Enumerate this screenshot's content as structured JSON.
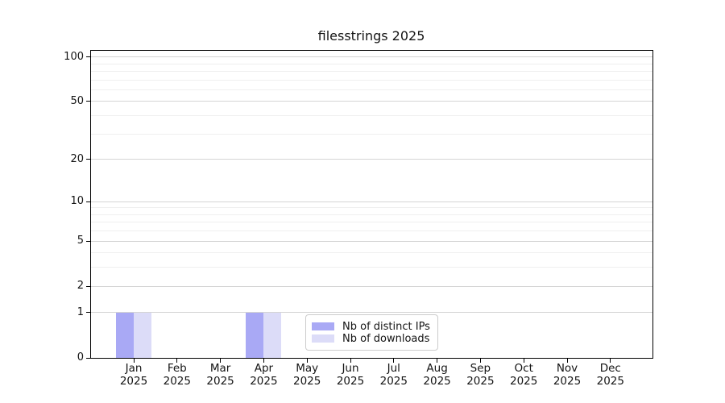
{
  "chart_data": {
    "type": "bar",
    "title": "filesstrings 2025",
    "categories": [
      "Jan 2025",
      "Feb 2025",
      "Mar 2025",
      "Apr 2025",
      "May 2025",
      "Jun 2025",
      "Jul 2025",
      "Aug 2025",
      "Sep 2025",
      "Oct 2025",
      "Nov 2025",
      "Dec 2025"
    ],
    "series": [
      {
        "name": "Nb of distinct IPs",
        "color": "#a9a9f5",
        "values": [
          1,
          0,
          0,
          1,
          0,
          0,
          0,
          0,
          0,
          0,
          0,
          0
        ]
      },
      {
        "name": "Nb of downloads",
        "color": "#dcdcf8",
        "values": [
          1,
          0,
          0,
          1,
          0,
          0,
          0,
          0,
          0,
          0,
          0,
          0
        ]
      }
    ],
    "yscale": "log1p",
    "ylim": [
      0,
      110
    ],
    "yticks": [
      0,
      1,
      2,
      5,
      10,
      20,
      50,
      100
    ],
    "yticks_minor": [
      3,
      4,
      6,
      7,
      8,
      9,
      30,
      40,
      60,
      70,
      80,
      90
    ],
    "grid": "horizontal",
    "legend_position": "lower center",
    "xlabel": "",
    "ylabel": ""
  }
}
